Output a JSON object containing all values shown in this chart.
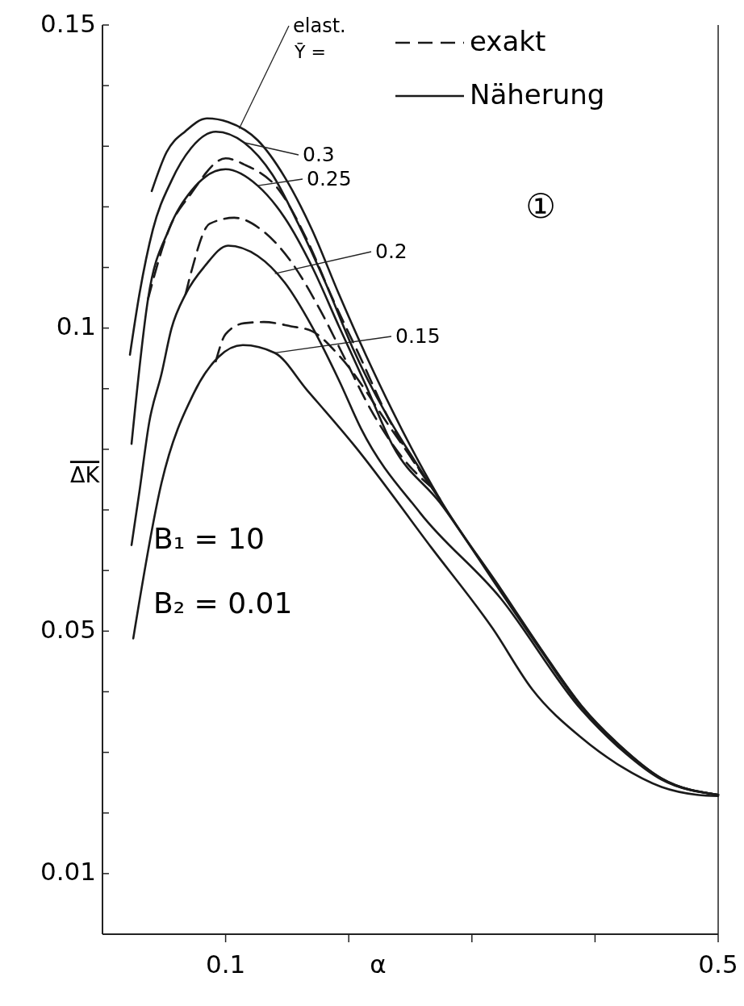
{
  "chart_data": {
    "type": "line",
    "xlabel": "α",
    "ylabel": "ΔK",
    "xlim": [
      0,
      0.5
    ],
    "ylim": [
      0,
      0.15
    ],
    "xticks": [
      0.1,
      {
        "value": 0.2,
        "label": null
      },
      {
        "value": 0.3,
        "label": null
      },
      {
        "value": 0.4,
        "label": null
      },
      0.5
    ],
    "yticks": [
      0.01,
      {
        "value": 0.02,
        "label": null
      },
      {
        "value": 0.03,
        "label": null
      },
      {
        "value": 0.04,
        "label": null
      },
      0.05,
      {
        "value": 0.06,
        "label": null
      },
      {
        "value": 0.07,
        "label": null
      },
      {
        "value": 0.08,
        "label": null
      },
      {
        "value": 0.09,
        "label": null
      },
      0.1,
      {
        "value": 0.11,
        "label": null
      },
      {
        "value": 0.12,
        "label": null
      },
      {
        "value": 0.13,
        "label": null
      },
      {
        "value": 0.14,
        "label": null
      },
      0.15
    ],
    "grid": false,
    "legend": "top right",
    "marker": "none",
    "series": [
      {
        "name": "exakt",
        "color": "#1a1a1a",
        "line_style": "dashed",
        "x": [
          0.037,
          0.054,
          0.072,
          0.1,
          0.115,
          0.144,
          0.166,
          0.187,
          0.21,
          0.231,
          0.274
        ],
        "values": [
          0.1048,
          0.1163,
          0.1222,
          0.128,
          0.127,
          0.1226,
          0.1146,
          0.1048,
          0.0949,
          0.0856,
          0.0718
        ]
      },
      {
        "name": "Näherung",
        "color": "#1a1a1a",
        "line_style": "solid",
        "x": [
          0.04,
          0.052,
          0.0675,
          0.085,
          0.102,
          0.126,
          0.148,
          0.17,
          0.192,
          0.214,
          0.274,
          0.323,
          0.356,
          0.389,
          0.421,
          0.454,
          0.5
        ],
        "values": [
          0.1226,
          0.129,
          0.1325,
          0.1346,
          0.134,
          0.131,
          0.1249,
          0.1163,
          0.1056,
          0.0955,
          0.0718,
          0.0571,
          0.0471,
          0.0377,
          0.031,
          0.0257,
          0.023
        ]
      },
      {
        "color": "#1a1a1a",
        "line_style": "solid",
        "x": [
          0.0223,
          0.03,
          0.041,
          0.056,
          0.072,
          0.092,
          0.115,
          0.138,
          0.159,
          0.181,
          0.203,
          0.274,
          0.323,
          0.356,
          0.389,
          0.421,
          0.454,
          0.5
        ],
        "values": [
          0.0956,
          0.1056,
          0.1163,
          0.1243,
          0.1297,
          0.1324,
          0.1306,
          0.1253,
          0.1172,
          0.1075,
          0.0968,
          0.0716,
          0.0569,
          0.047,
          0.0376,
          0.0309,
          0.0257,
          0.023
        ]
      },
      {
        "color": "#1a1a1a",
        "line_style": "solid",
        "x": [
          0.0236,
          0.037,
          0.054,
          0.072,
          0.1,
          0.126,
          0.148,
          0.17,
          0.192,
          0.214,
          0.236,
          0.274,
          0.323,
          0.356,
          0.389,
          0.421,
          0.454,
          0.5
        ],
        "values": [
          0.0809,
          0.1048,
          0.1163,
          0.1226,
          0.1262,
          0.1235,
          0.1182,
          0.1102,
          0.1003,
          0.0905,
          0.0805,
          0.0712,
          0.0566,
          0.0468,
          0.0374,
          0.0308,
          0.0256,
          0.023
        ]
      },
      {
        "color": "#1a1a1a",
        "line_style": "dashed",
        "x": [
          0.0675,
          0.072,
          0.087,
          0.107,
          0.131,
          0.153,
          0.177,
          0.197,
          0.218,
          0.244,
          0.271
        ],
        "values": [
          0.1056,
          0.1092,
          0.1172,
          0.1182,
          0.1159,
          0.111,
          0.1029,
          0.0949,
          0.0865,
          0.0785,
          0.0731
        ]
      },
      {
        "color": "#1a1a1a",
        "line_style": "solid",
        "x": [
          0.0236,
          0.03,
          0.038,
          0.048,
          0.056,
          0.0675,
          0.083,
          0.102,
          0.126,
          0.148,
          0.17,
          0.192,
          0.21,
          0.258,
          0.323,
          0.389,
          0.421,
          0.454,
          0.5
        ],
        "values": [
          0.0642,
          0.073,
          0.0845,
          0.0925,
          0.0999,
          0.1056,
          0.1102,
          0.1136,
          0.1119,
          0.1075,
          0.1003,
          0.0914,
          0.0834,
          0.0695,
          0.0555,
          0.037,
          0.0305,
          0.0255,
          0.023
        ]
      },
      {
        "color": "#1a1a1a",
        "line_style": "dashed",
        "x": [
          0.092,
          0.1,
          0.115,
          0.131,
          0.153,
          0.17,
          0.192,
          0.235,
          0.258
        ],
        "values": [
          0.0945,
          0.099,
          0.1008,
          0.101,
          0.1003,
          0.0995,
          0.0955,
          0.0832,
          0.0765
        ]
      },
      {
        "color": "#1a1a1a",
        "line_style": "solid",
        "x": [
          0.025,
          0.048,
          0.074,
          0.094,
          0.114,
          0.14,
          0.166,
          0.205,
          0.267,
          0.317,
          0.349,
          0.389,
          0.421,
          0.454,
          0.483,
          0.5
        ],
        "values": [
          0.0488,
          0.0745,
          0.0892,
          0.0952,
          0.0972,
          0.0959,
          0.0898,
          0.0805,
          0.0638,
          0.0504,
          0.0404,
          0.0324,
          0.0277,
          0.0243,
          0.023,
          0.0228
        ]
      }
    ],
    "annotations": [
      {
        "text": "elast.",
        "x": 0.111,
        "y": 0.1329
      },
      {
        "text": "Ȳ ="
      },
      {
        "text": "0.3",
        "x": 0.115,
        "y": 0.1306
      },
      {
        "text": "0.25",
        "x": 0.126,
        "y": 0.1235
      },
      {
        "text": "0.2",
        "x": 0.14,
        "y": 0.109
      },
      {
        "text": "0.15",
        "x": 0.14,
        "y": 0.0959
      },
      {
        "text": "①"
      },
      {
        "text": "B₁ = 10"
      },
      {
        "text": "B₂ = 0.01"
      }
    ]
  }
}
